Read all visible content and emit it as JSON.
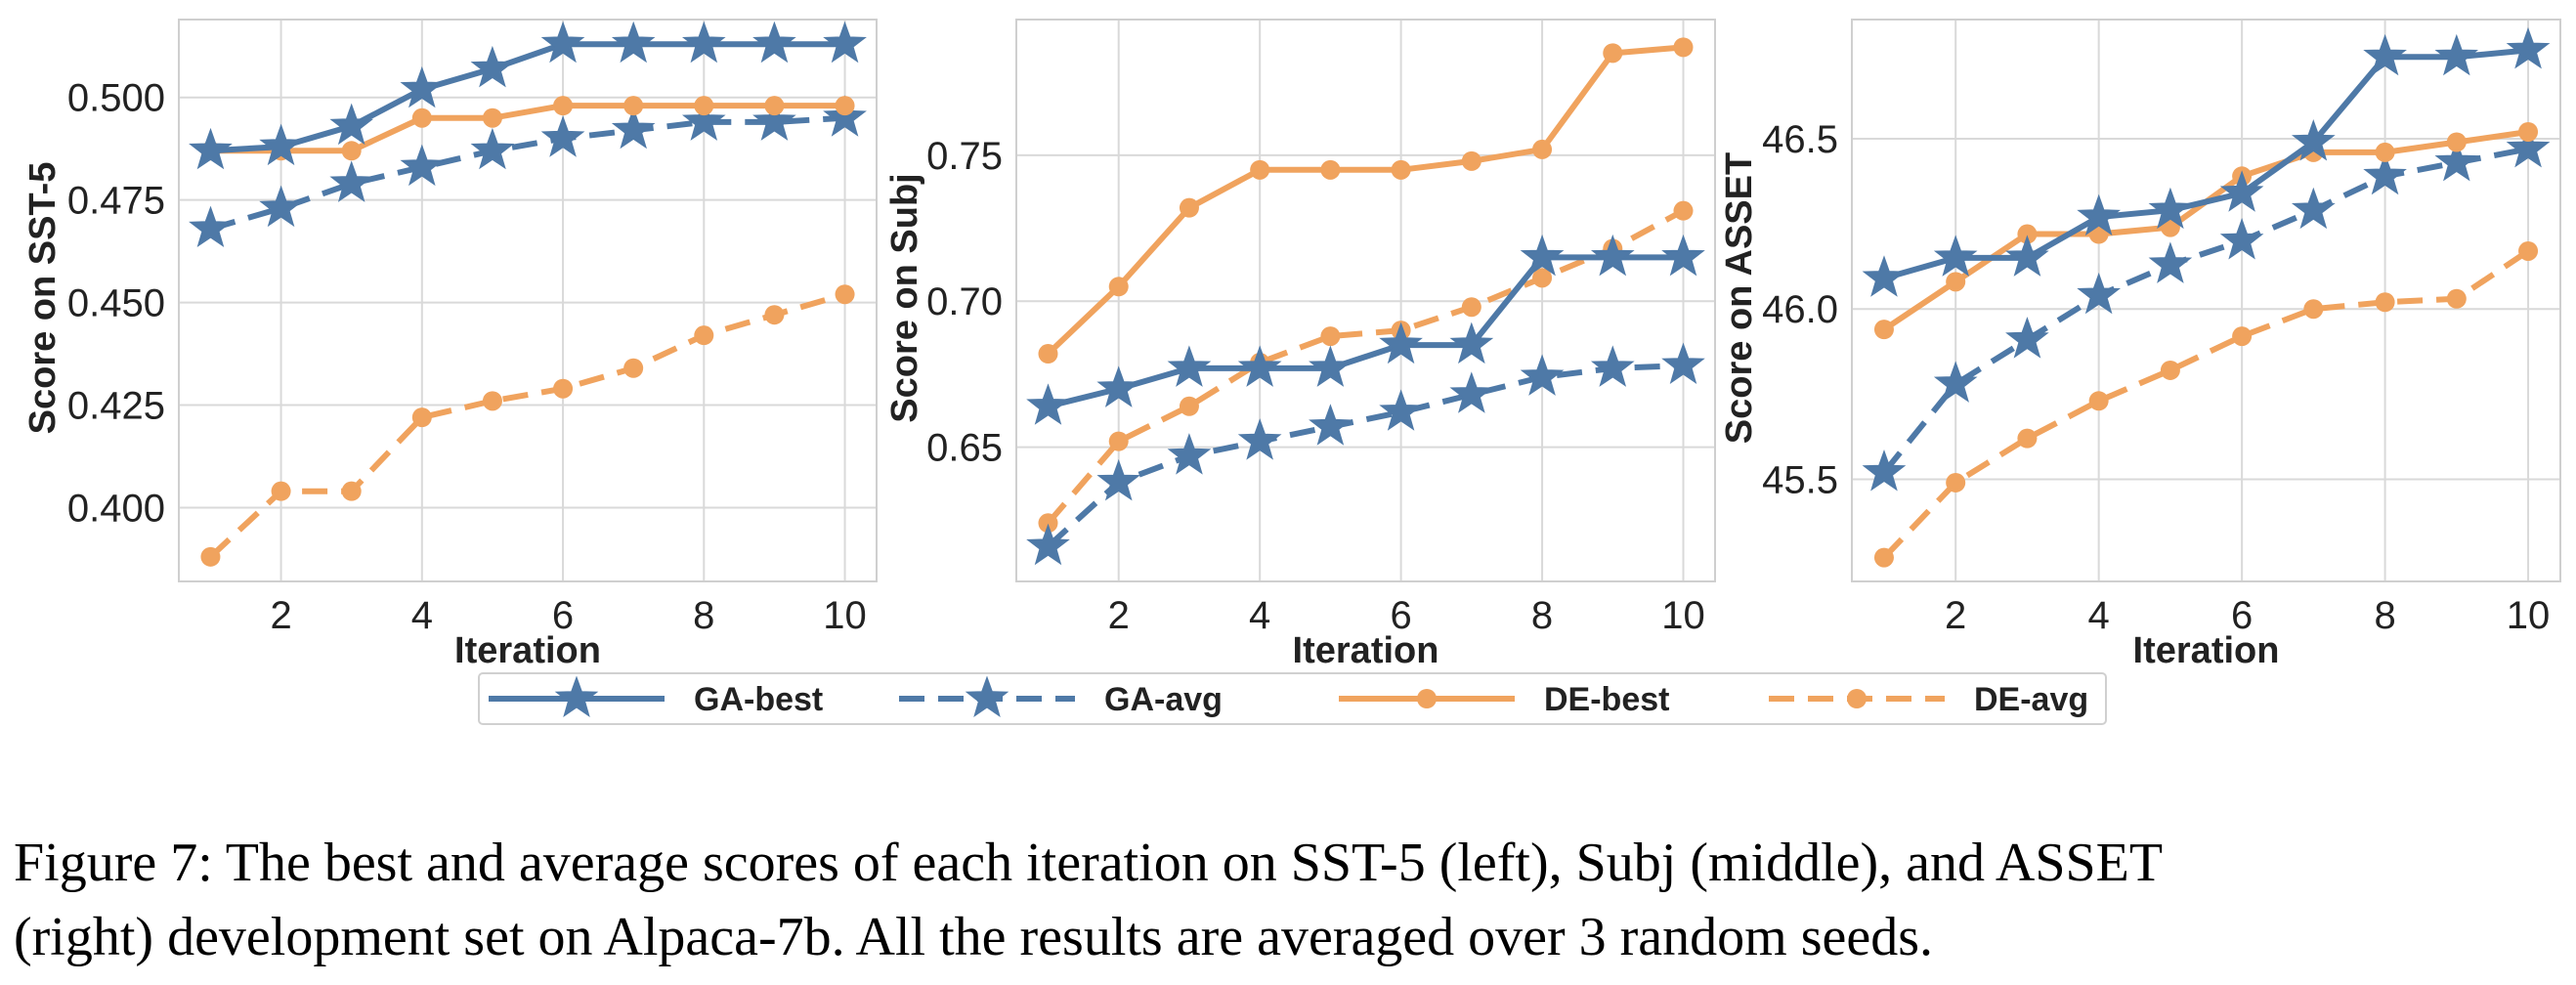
{
  "legend": {
    "location": "bottom-center",
    "entries": [
      "GA-best",
      "GA-avg",
      "DE-best",
      "DE-avg"
    ]
  },
  "styles": {
    "GA-best": {
      "color": "#4e79a7",
      "dash": "solid",
      "marker": "star"
    },
    "GA-avg": {
      "color": "#4e79a7",
      "dash": "dashed",
      "marker": "star"
    },
    "DE-best": {
      "color": "#f0a35e",
      "dash": "solid",
      "marker": "circle"
    },
    "DE-avg": {
      "color": "#f0a35e",
      "dash": "dashed",
      "marker": "circle"
    }
  },
  "chart_data": [
    {
      "type": "line",
      "xlabel": "Iteration",
      "ylabel": "Score on SST-5",
      "x": [
        1,
        2,
        3,
        4,
        5,
        6,
        7,
        8,
        9,
        10
      ],
      "xlim": [
        0.55,
        10.45
      ],
      "ylim": [
        0.382,
        0.519
      ],
      "xticks": [
        2,
        4,
        6,
        8,
        10
      ],
      "xtick_labels": [
        "2",
        "4",
        "6",
        "8",
        "10"
      ],
      "yticks": [
        0.4,
        0.425,
        0.45,
        0.475,
        0.5
      ],
      "ytick_labels": [
        "0.400",
        "0.425",
        "0.450",
        "0.475",
        "0.500"
      ],
      "grid": true,
      "series": [
        {
          "name": "GA-best",
          "values": [
            0.487,
            0.488,
            0.493,
            0.502,
            0.507,
            0.513,
            0.513,
            0.513,
            0.513,
            0.513
          ]
        },
        {
          "name": "GA-avg",
          "values": [
            0.468,
            0.473,
            0.479,
            0.483,
            0.487,
            0.49,
            0.492,
            0.494,
            0.494,
            0.495
          ]
        },
        {
          "name": "DE-best",
          "values": [
            0.487,
            0.487,
            0.487,
            0.495,
            0.495,
            0.498,
            0.498,
            0.498,
            0.498,
            0.498
          ]
        },
        {
          "name": "DE-avg",
          "values": [
            0.388,
            0.404,
            0.404,
            0.422,
            0.426,
            0.429,
            0.434,
            0.442,
            0.447,
            0.452
          ]
        }
      ]
    },
    {
      "type": "line",
      "xlabel": "Iteration",
      "ylabel": "Score on Subj",
      "x": [
        1,
        2,
        3,
        4,
        5,
        6,
        7,
        8,
        9,
        10
      ],
      "xlim": [
        0.55,
        10.45
      ],
      "ylim": [
        0.604,
        0.7965
      ],
      "xticks": [
        2,
        4,
        6,
        8,
        10
      ],
      "xtick_labels": [
        "2",
        "4",
        "6",
        "8",
        "10"
      ],
      "yticks": [
        0.65,
        0.7,
        0.75
      ],
      "ytick_labels": [
        "0.65",
        "0.70",
        "0.75"
      ],
      "grid": true,
      "series": [
        {
          "name": "GA-best",
          "values": [
            0.664,
            0.67,
            0.677,
            0.677,
            0.677,
            0.685,
            0.685,
            0.715,
            0.715,
            0.715
          ]
        },
        {
          "name": "GA-avg",
          "values": [
            0.616,
            0.638,
            0.647,
            0.652,
            0.657,
            0.662,
            0.668,
            0.674,
            0.677,
            0.678
          ]
        },
        {
          "name": "DE-best",
          "values": [
            0.682,
            0.705,
            0.732,
            0.745,
            0.745,
            0.745,
            0.748,
            0.752,
            0.785,
            0.787
          ]
        },
        {
          "name": "DE-avg",
          "values": [
            0.624,
            0.652,
            0.664,
            0.679,
            0.688,
            0.69,
            0.698,
            0.708,
            0.718,
            0.731
          ]
        }
      ]
    },
    {
      "type": "line",
      "xlabel": "Iteration",
      "ylabel": "Score on ASSET",
      "x": [
        1,
        2,
        3,
        4,
        5,
        6,
        7,
        8,
        9,
        10
      ],
      "xlim": [
        0.55,
        10.45
      ],
      "ylim": [
        45.2,
        46.85
      ],
      "xticks": [
        2,
        4,
        6,
        8,
        10
      ],
      "xtick_labels": [
        "2",
        "4",
        "6",
        "8",
        "10"
      ],
      "yticks": [
        45.5,
        46.0,
        46.5
      ],
      "ytick_labels": [
        "45.5",
        "46.0",
        "46.5"
      ],
      "grid": true,
      "series": [
        {
          "name": "GA-best",
          "values": [
            46.09,
            46.15,
            46.15,
            46.27,
            46.29,
            46.34,
            46.49,
            46.74,
            46.74,
            46.76
          ]
        },
        {
          "name": "GA-avg",
          "values": [
            45.52,
            45.78,
            45.91,
            46.04,
            46.13,
            46.2,
            46.29,
            46.39,
            46.43,
            46.47
          ]
        },
        {
          "name": "DE-best",
          "values": [
            45.94,
            46.08,
            46.22,
            46.22,
            46.24,
            46.39,
            46.46,
            46.46,
            46.49,
            46.52
          ]
        },
        {
          "name": "DE-avg",
          "values": [
            45.27,
            45.49,
            45.62,
            45.73,
            45.82,
            45.92,
            46.0,
            46.02,
            46.03,
            46.17
          ]
        }
      ]
    }
  ],
  "caption": {
    "line1": "Figure 7: The best and average scores of each iteration on SST-5 (left), Subj (middle), and ASSET",
    "line2": "(right) development set on Alpaca-7b. All the results are averaged over 3 random seeds."
  }
}
